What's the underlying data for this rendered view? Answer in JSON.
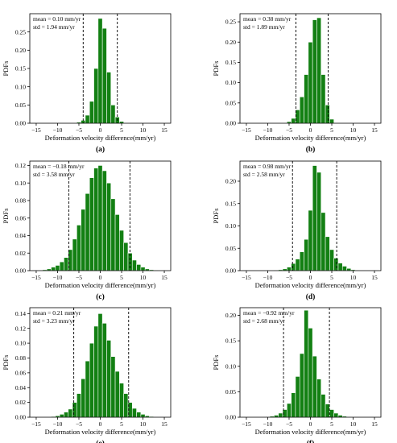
{
  "colors": {
    "bar_fill": "#138013",
    "bar_edge": "#ffffff",
    "axis": "#000000",
    "mean_line": "#000000",
    "background": "#ffffff"
  },
  "chart_data": [
    {
      "type": "bar",
      "panel_label": "(a)",
      "annotation": [
        "mean = 0.10 mm/yr",
        "std = 1.94 mm/yr"
      ],
      "xlabel": "Deformation velocity difference(mm/yr)",
      "ylabel": "PDFs",
      "xlim": [
        -16.5,
        16.5
      ],
      "ylim": [
        0,
        0.3
      ],
      "xticks": [
        -15,
        -10,
        -5,
        0,
        5,
        10,
        15
      ],
      "xtick_labels": [
        "−15",
        "−10",
        "−5",
        "0",
        "5",
        "10",
        "15"
      ],
      "yticks": [
        0,
        0.05,
        0.1,
        0.15,
        0.2,
        0.25
      ],
      "ytick_labels": [
        "0.00",
        "0.05",
        "0.10",
        "0.15",
        "0.20",
        "0.25"
      ],
      "bin_width": 1,
      "x": [
        -5,
        -4,
        -3,
        -2,
        -1,
        0,
        1,
        2,
        3,
        4,
        5
      ],
      "values": [
        0.003,
        0.008,
        0.022,
        0.06,
        0.15,
        0.287,
        0.26,
        0.14,
        0.05,
        0.017,
        0.005
      ],
      "vlines": [
        -4.0,
        4.0
      ]
    },
    {
      "type": "bar",
      "panel_label": "(b)",
      "annotation": [
        "mean = 0.38 mm/yr",
        "std = 1.89 mm/yr"
      ],
      "xlabel": "Deformation velocity difference(mm/yr)",
      "ylabel": "PDFs",
      "xlim": [
        -16.5,
        16.5
      ],
      "ylim": [
        0,
        0.27
      ],
      "xticks": [
        -15,
        -10,
        -5,
        0,
        5,
        10,
        15
      ],
      "xtick_labels": [
        "−15",
        "−10",
        "−5",
        "0",
        "5",
        "10",
        "15"
      ],
      "yticks": [
        0,
        0.05,
        0.1,
        0.15,
        0.2,
        0.25
      ],
      "ytick_labels": [
        "0.00",
        "0.05",
        "0.10",
        "0.15",
        "0.20",
        "0.25"
      ],
      "bin_width": 1,
      "x": [
        -5,
        -4,
        -3,
        -2,
        -1,
        0,
        1,
        2,
        3,
        4,
        5
      ],
      "values": [
        0.004,
        0.012,
        0.033,
        0.065,
        0.12,
        0.2,
        0.255,
        0.26,
        0.12,
        0.045,
        0.01
      ],
      "vlines": [
        -3.4,
        4.15
      ]
    },
    {
      "type": "bar",
      "panel_label": "(c)",
      "annotation": [
        "mean = −0.18 mm/yr",
        "std = 3.58 mm/yr"
      ],
      "xlabel": "Deformation velocity difference(mm/yr)",
      "ylabel": "PDFs",
      "xlim": [
        -16.5,
        16.5
      ],
      "ylim": [
        0,
        0.125
      ],
      "xticks": [
        -15,
        -10,
        -5,
        0,
        5,
        10,
        15
      ],
      "xtick_labels": [
        "−15",
        "−10",
        "−5",
        "0",
        "5",
        "10",
        "15"
      ],
      "yticks": [
        0,
        0.02,
        0.04,
        0.06,
        0.08,
        0.1,
        0.12
      ],
      "ytick_labels": [
        "0.00",
        "0.02",
        "0.04",
        "0.06",
        "0.08",
        "0.10",
        "0.12"
      ],
      "bin_width": 1,
      "x": [
        -13,
        -12,
        -11,
        -10,
        -9,
        -8,
        -7,
        -6,
        -5,
        -4,
        -3,
        -2,
        -1,
        0,
        1,
        2,
        3,
        4,
        5,
        6,
        7,
        8,
        9,
        10,
        11,
        12,
        13
      ],
      "values": [
        0.001,
        0.002,
        0.004,
        0.006,
        0.01,
        0.015,
        0.024,
        0.036,
        0.052,
        0.07,
        0.088,
        0.106,
        0.117,
        0.12,
        0.114,
        0.1,
        0.082,
        0.064,
        0.046,
        0.032,
        0.02,
        0.012,
        0.007,
        0.004,
        0.002,
        0.001,
        0.0005
      ],
      "vlines": [
        -7.35,
        6.95
      ]
    },
    {
      "type": "bar",
      "panel_label": "(d)",
      "annotation": [
        "mean = 0.98 mm/yr",
        "std = 2.58 mm/yr"
      ],
      "xlabel": "Deformation velocity difference(mm/yr)",
      "ylabel": "PDFs",
      "xlim": [
        -16.5,
        16.5
      ],
      "ylim": [
        0,
        0.245
      ],
      "xticks": [
        -15,
        -10,
        -5,
        0,
        5,
        10,
        15
      ],
      "xtick_labels": [
        "−15",
        "−10",
        "−5",
        "0",
        "5",
        "10",
        "15"
      ],
      "yticks": [
        0,
        0.05,
        0.1,
        0.15,
        0.2
      ],
      "ytick_labels": [
        "0.00",
        "0.05",
        "0.10",
        "0.15",
        "0.20"
      ],
      "bin_width": 1,
      "x": [
        -8,
        -7,
        -6,
        -5,
        -4,
        -3,
        -2,
        -1,
        0,
        1,
        2,
        3,
        4,
        5,
        6,
        7,
        8,
        9,
        10,
        11
      ],
      "values": [
        0.001,
        0.002,
        0.004,
        0.008,
        0.016,
        0.026,
        0.042,
        0.07,
        0.135,
        0.235,
        0.22,
        0.13,
        0.076,
        0.047,
        0.028,
        0.017,
        0.01,
        0.005,
        0.002,
        0.001
      ],
      "vlines": [
        -4.2,
        6.15
      ]
    },
    {
      "type": "bar",
      "panel_label": "(e)",
      "annotation": [
        "mean = 0.21 mm/yr",
        "std = 3.23 mm/yr"
      ],
      "xlabel": "Deformation velocity difference(mm/yr)",
      "ylabel": "PDFs",
      "xlim": [
        -16.5,
        16.5
      ],
      "ylim": [
        0,
        0.148
      ],
      "xticks": [
        -15,
        -10,
        -5,
        0,
        5,
        10,
        15
      ],
      "xtick_labels": [
        "−15",
        "−10",
        "−5",
        "0",
        "5",
        "10",
        "15"
      ],
      "yticks": [
        0,
        0.02,
        0.04,
        0.06,
        0.08,
        0.1,
        0.12,
        0.14
      ],
      "ytick_labels": [
        "0.00",
        "0.02",
        "0.04",
        "0.06",
        "0.08",
        "0.10",
        "0.12",
        "0.14"
      ],
      "bin_width": 1,
      "x": [
        -11,
        -10,
        -9,
        -8,
        -7,
        -6,
        -5,
        -4,
        -3,
        -2,
        -1,
        0,
        1,
        2,
        3,
        4,
        5,
        6,
        7,
        8,
        9,
        10,
        11,
        12
      ],
      "values": [
        0.001,
        0.002,
        0.004,
        0.007,
        0.011,
        0.02,
        0.032,
        0.052,
        0.076,
        0.1,
        0.123,
        0.14,
        0.127,
        0.104,
        0.082,
        0.062,
        0.046,
        0.032,
        0.02,
        0.012,
        0.007,
        0.004,
        0.002,
        0.001
      ],
      "vlines": [
        -6.2,
        6.65
      ]
    },
    {
      "type": "bar",
      "panel_label": "(f)",
      "annotation": [
        "mean = −0.92 mm/yr",
        "std = 2.68 mm/yr"
      ],
      "xlabel": "Deformation velocity difference(mm/yr)",
      "ylabel": "PDFs",
      "xlim": [
        -16.5,
        16.5
      ],
      "ylim": [
        0,
        0.215
      ],
      "xticks": [
        -15,
        -10,
        -5,
        0,
        5,
        10,
        15
      ],
      "xtick_labels": [
        "−15",
        "−10",
        "−5",
        "0",
        "5",
        "10",
        "15"
      ],
      "yticks": [
        0,
        0.05,
        0.1,
        0.15,
        0.2
      ],
      "ytick_labels": [
        "0.00",
        "0.05",
        "0.10",
        "0.15",
        "0.20"
      ],
      "bin_width": 1,
      "x": [
        -10,
        -9,
        -8,
        -7,
        -6,
        -5,
        -4,
        -3,
        -2,
        -1,
        0,
        1,
        2,
        3,
        4,
        5,
        6,
        7,
        8,
        9
      ],
      "values": [
        0.001,
        0.002,
        0.004,
        0.008,
        0.015,
        0.027,
        0.048,
        0.08,
        0.125,
        0.21,
        0.175,
        0.12,
        0.075,
        0.045,
        0.026,
        0.015,
        0.008,
        0.004,
        0.002,
        0.001
      ],
      "vlines": [
        -6.3,
        4.45
      ]
    }
  ]
}
